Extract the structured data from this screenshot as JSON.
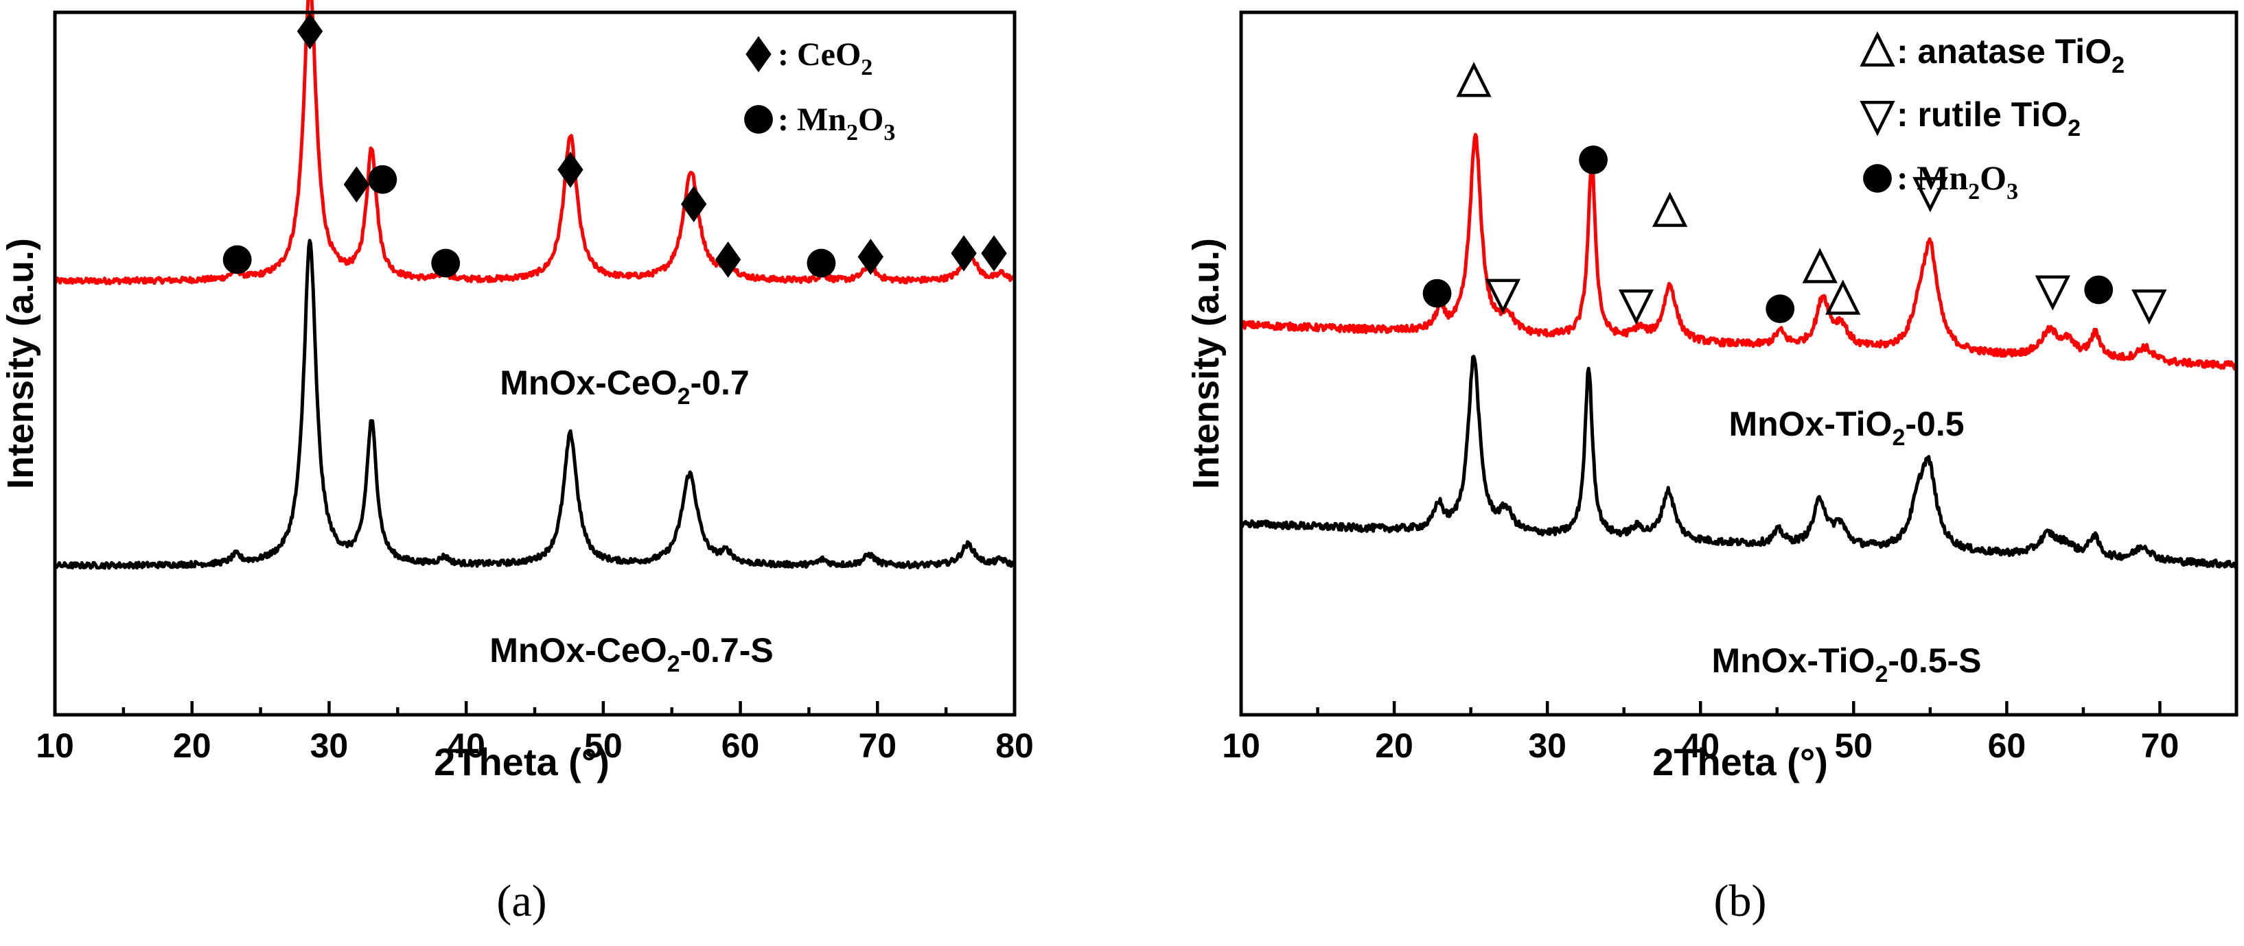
{
  "chart_data": [
    {
      "panel": "a",
      "type": "line",
      "caption": "(a)",
      "xlabel": "2Theta (°)",
      "ylabel": "Intensity (a.u.)",
      "xlim": [
        10,
        80
      ],
      "ylim": [
        0,
        1
      ],
      "xticks": [
        10,
        20,
        30,
        40,
        50,
        60,
        70,
        80
      ],
      "tick_labels": [
        "10",
        "20",
        "30",
        "40",
        "50",
        "60",
        "70",
        "80"
      ],
      "y_tick_labels_shown": false,
      "legend": {
        "position": "top-right",
        "entries": [
          {
            "symbol": "diamond",
            "label": "CeO",
            "sub": "2"
          },
          {
            "symbol": "circle",
            "label": "Mn",
            "sub": "2",
            "label2": "O",
            "sub2": "3"
          }
        ]
      },
      "series": [
        {
          "name": "MnOx-CeO2-0.7",
          "label_parts": [
            "MnOx-CeO",
            "2",
            "-0.7"
          ],
          "color": "#ff0000",
          "baseline": 0.617,
          "noise": 0.004,
          "peaks": [
            {
              "x": 23.2,
              "h": 0.012,
              "w": 0.4
            },
            {
              "x": 28.6,
              "h": 0.425,
              "w": 0.55
            },
            {
              "x": 33.1,
              "h": 0.185,
              "w": 0.45
            },
            {
              "x": 38.4,
              "h": 0.01,
              "w": 0.4
            },
            {
              "x": 47.6,
              "h": 0.205,
              "w": 0.6
            },
            {
              "x": 56.4,
              "h": 0.155,
              "w": 0.7
            },
            {
              "x": 59.1,
              "h": 0.02,
              "w": 0.5
            },
            {
              "x": 66.0,
              "h": 0.008,
              "w": 0.4
            },
            {
              "x": 69.4,
              "h": 0.023,
              "w": 0.5
            },
            {
              "x": 76.7,
              "h": 0.04,
              "w": 0.6
            },
            {
              "x": 79.1,
              "h": 0.01,
              "w": 0.4
            }
          ]
        },
        {
          "name": "MnOx-CeO2-0.7-S",
          "label_parts": [
            "MnOx-CeO",
            "2",
            "-0.7-S"
          ],
          "color": "#000000",
          "baseline": 0.212,
          "noise": 0.004,
          "peaks": [
            {
              "x": 23.2,
              "h": 0.012,
              "w": 0.4
            },
            {
              "x": 28.6,
              "h": 0.46,
              "w": 0.55
            },
            {
              "x": 33.1,
              "h": 0.2,
              "w": 0.45
            },
            {
              "x": 38.4,
              "h": 0.01,
              "w": 0.4
            },
            {
              "x": 47.6,
              "h": 0.187,
              "w": 0.6
            },
            {
              "x": 56.3,
              "h": 0.13,
              "w": 0.7
            },
            {
              "x": 59.0,
              "h": 0.015,
              "w": 0.5
            },
            {
              "x": 66.0,
              "h": 0.008,
              "w": 0.4
            },
            {
              "x": 69.4,
              "h": 0.015,
              "w": 0.5
            },
            {
              "x": 76.6,
              "h": 0.03,
              "w": 0.6
            },
            {
              "x": 79.0,
              "h": 0.008,
              "w": 0.4
            }
          ]
        }
      ],
      "markers": [
        {
          "symbol": "diamond",
          "x": 28.6,
          "y": 0.973
        },
        {
          "symbol": "diamond",
          "x": 32.0,
          "y": 0.755
        },
        {
          "symbol": "circle",
          "x": 33.9,
          "y": 0.762
        },
        {
          "symbol": "diamond",
          "x": 47.6,
          "y": 0.776
        },
        {
          "symbol": "diamond",
          "x": 56.6,
          "y": 0.727
        },
        {
          "symbol": "circle",
          "x": 23.3,
          "y": 0.648
        },
        {
          "symbol": "circle",
          "x": 38.5,
          "y": 0.643
        },
        {
          "symbol": "diamond",
          "x": 59.1,
          "y": 0.648
        },
        {
          "symbol": "circle",
          "x": 65.9,
          "y": 0.643
        },
        {
          "symbol": "diamond",
          "x": 69.5,
          "y": 0.652
        },
        {
          "symbol": "diamond",
          "x": 76.3,
          "y": 0.657
        },
        {
          "symbol": "diamond",
          "x": 78.5,
          "y": 0.657
        }
      ]
    },
    {
      "panel": "b",
      "type": "line",
      "caption": "(b)",
      "xlabel": "2Theta (°)",
      "ylabel": "Intensity (a.u.)",
      "xlim": [
        10,
        75
      ],
      "ylim": [
        0,
        1
      ],
      "xticks": [
        10,
        20,
        30,
        40,
        50,
        60,
        70
      ],
      "tick_labels": [
        "10",
        "20",
        "30",
        "40",
        "50",
        "60",
        "70"
      ],
      "y_tick_labels_shown": false,
      "legend": {
        "position": "top-right",
        "entries": [
          {
            "symbol": "up-triangle",
            "label": "anatase TiO",
            "sub": "2"
          },
          {
            "symbol": "down-triangle",
            "label": "rutile TiO",
            "sub": "2"
          },
          {
            "symbol": "circle",
            "label": "Mn",
            "sub": "2",
            "label2": "O",
            "sub2": "3"
          }
        ]
      },
      "series": [
        {
          "name": "MnOx-TiO2-0.5",
          "label_parts": [
            "MnOx-TiO",
            "2",
            "-0.5"
          ],
          "color": "#ff0000",
          "baseline": 0.555,
          "slope": -0.0009,
          "noise": 0.005,
          "peaks": [
            {
              "x": 23.0,
              "h": 0.03,
              "w": 0.35
            },
            {
              "x": 25.3,
              "h": 0.28,
              "w": 0.45
            },
            {
              "x": 27.4,
              "h": 0.025,
              "w": 0.5
            },
            {
              "x": 32.9,
              "h": 0.25,
              "w": 0.3
            },
            {
              "x": 36.0,
              "h": 0.015,
              "w": 0.5
            },
            {
              "x": 38.0,
              "h": 0.08,
              "w": 0.5
            },
            {
              "x": 45.2,
              "h": 0.02,
              "w": 0.4
            },
            {
              "x": 48.0,
              "h": 0.07,
              "w": 0.5
            },
            {
              "x": 49.2,
              "h": 0.03,
              "w": 0.5
            },
            {
              "x": 54.3,
              "h": 0.04,
              "w": 0.6
            },
            {
              "x": 55.0,
              "h": 0.14,
              "w": 0.6
            },
            {
              "x": 62.8,
              "h": 0.035,
              "w": 0.7
            },
            {
              "x": 64.0,
              "h": 0.02,
              "w": 0.6
            },
            {
              "x": 65.8,
              "h": 0.035,
              "w": 0.4
            },
            {
              "x": 69.0,
              "h": 0.02,
              "w": 0.6
            }
          ]
        },
        {
          "name": "MnOx-TiO2-0.5-S",
          "label_parts": [
            "MnOx-TiO",
            "2",
            "-0.5-S"
          ],
          "color": "#000000",
          "baseline": 0.272,
          "slope": -0.0009,
          "noise": 0.005,
          "peaks": [
            {
              "x": 22.9,
              "h": 0.035,
              "w": 0.35
            },
            {
              "x": 25.2,
              "h": 0.25,
              "w": 0.45
            },
            {
              "x": 27.3,
              "h": 0.03,
              "w": 0.5
            },
            {
              "x": 32.7,
              "h": 0.24,
              "w": 0.3
            },
            {
              "x": 35.9,
              "h": 0.015,
              "w": 0.5
            },
            {
              "x": 37.9,
              "h": 0.07,
              "w": 0.5
            },
            {
              "x": 45.1,
              "h": 0.02,
              "w": 0.4
            },
            {
              "x": 47.8,
              "h": 0.065,
              "w": 0.5
            },
            {
              "x": 49.1,
              "h": 0.03,
              "w": 0.5
            },
            {
              "x": 54.2,
              "h": 0.05,
              "w": 0.6
            },
            {
              "x": 54.9,
              "h": 0.11,
              "w": 0.6
            },
            {
              "x": 62.7,
              "h": 0.03,
              "w": 0.7
            },
            {
              "x": 63.9,
              "h": 0.015,
              "w": 0.6
            },
            {
              "x": 65.7,
              "h": 0.03,
              "w": 0.4
            },
            {
              "x": 68.9,
              "h": 0.02,
              "w": 0.6
            }
          ]
        }
      ],
      "markers": [
        {
          "symbol": "up-triangle",
          "x": 25.2,
          "y": 0.9
        },
        {
          "symbol": "circle",
          "x": 33.0,
          "y": 0.79
        },
        {
          "symbol": "up-triangle",
          "x": 38.0,
          "y": 0.715
        },
        {
          "symbol": "circle",
          "x": 22.8,
          "y": 0.6
        },
        {
          "symbol": "down-triangle",
          "x": 27.1,
          "y": 0.6
        },
        {
          "symbol": "down-triangle",
          "x": 35.8,
          "y": 0.585
        },
        {
          "symbol": "circle",
          "x": 45.2,
          "y": 0.578
        },
        {
          "symbol": "up-triangle",
          "x": 47.8,
          "y": 0.635
        },
        {
          "symbol": "up-triangle",
          "x": 49.3,
          "y": 0.59
        },
        {
          "symbol": "down-triangle",
          "x": 55.0,
          "y": 0.745
        },
        {
          "symbol": "down-triangle",
          "x": 63.0,
          "y": 0.605
        },
        {
          "symbol": "circle",
          "x": 66.0,
          "y": 0.605
        },
        {
          "symbol": "down-triangle",
          "x": 69.3,
          "y": 0.585
        }
      ]
    }
  ]
}
